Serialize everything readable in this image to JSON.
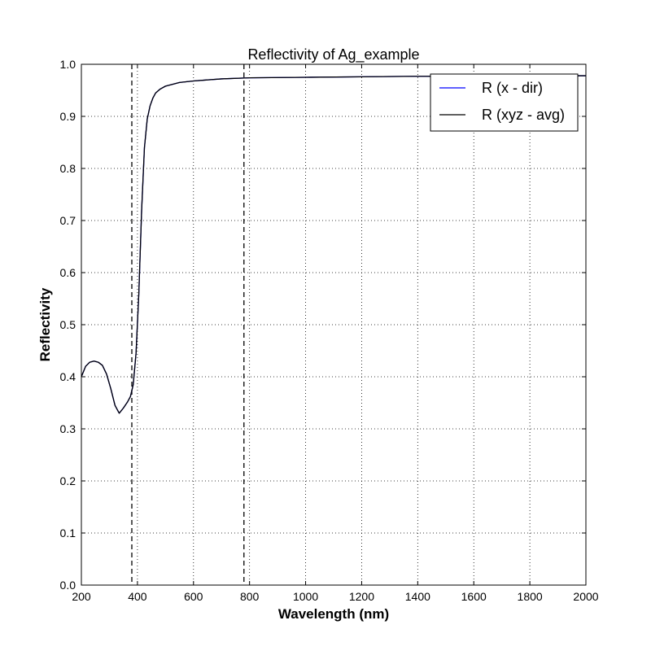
{
  "chart_data": {
    "type": "line",
    "title": "Reflectivity of Ag_example",
    "xlabel": "Wavelength (nm)",
    "ylabel": "Reflectivity",
    "xlim": [
      200,
      2000
    ],
    "ylim": [
      0.0,
      1.0
    ],
    "xticks": [
      200,
      400,
      600,
      800,
      1000,
      1200,
      1400,
      1600,
      1800,
      2000
    ],
    "yticks": [
      0.0,
      0.1,
      0.2,
      0.3,
      0.4,
      0.5,
      0.6,
      0.7,
      0.8,
      0.9,
      1.0
    ],
    "xtick_labels": [
      "200",
      "400",
      "600",
      "800",
      "1000",
      "1200",
      "1400",
      "1600",
      "1800",
      "2000"
    ],
    "ytick_labels": [
      "0.0",
      "0.1",
      "0.2",
      "0.3",
      "0.4",
      "0.5",
      "0.6",
      "0.7",
      "0.8",
      "0.9",
      "1.0"
    ],
    "grid": true,
    "legend_position": "top-right",
    "vertical_dashed_lines": [
      380,
      780
    ],
    "series": [
      {
        "name": "R (x - dir)",
        "color": "#0000ff",
        "x": [
          200,
          215,
          230,
          245,
          260,
          275,
          290,
          305,
          320,
          335,
          350,
          365,
          375,
          385,
          395,
          405,
          415,
          425,
          435,
          445,
          455,
          465,
          480,
          500,
          550,
          600,
          700,
          800,
          1000,
          1200,
          1400,
          1600,
          1800,
          2000
        ],
        "y": [
          0.4,
          0.42,
          0.428,
          0.43,
          0.428,
          0.422,
          0.405,
          0.377,
          0.345,
          0.33,
          0.34,
          0.352,
          0.362,
          0.385,
          0.445,
          0.56,
          0.72,
          0.84,
          0.895,
          0.92,
          0.935,
          0.945,
          0.952,
          0.958,
          0.965,
          0.968,
          0.972,
          0.974,
          0.975,
          0.976,
          0.977,
          0.977,
          0.978,
          0.978
        ]
      },
      {
        "name": "R (xyz - avg)",
        "color": "#000000",
        "x": [
          200,
          215,
          230,
          245,
          260,
          275,
          290,
          305,
          320,
          335,
          350,
          365,
          375,
          385,
          395,
          405,
          415,
          425,
          435,
          445,
          455,
          465,
          480,
          500,
          550,
          600,
          700,
          800,
          1000,
          1200,
          1400,
          1600,
          1800,
          2000
        ],
        "y": [
          0.4,
          0.42,
          0.428,
          0.43,
          0.428,
          0.422,
          0.405,
          0.377,
          0.345,
          0.33,
          0.34,
          0.352,
          0.362,
          0.385,
          0.445,
          0.56,
          0.72,
          0.84,
          0.895,
          0.92,
          0.935,
          0.945,
          0.952,
          0.958,
          0.965,
          0.968,
          0.972,
          0.974,
          0.975,
          0.976,
          0.977,
          0.977,
          0.978,
          0.978
        ]
      }
    ]
  }
}
